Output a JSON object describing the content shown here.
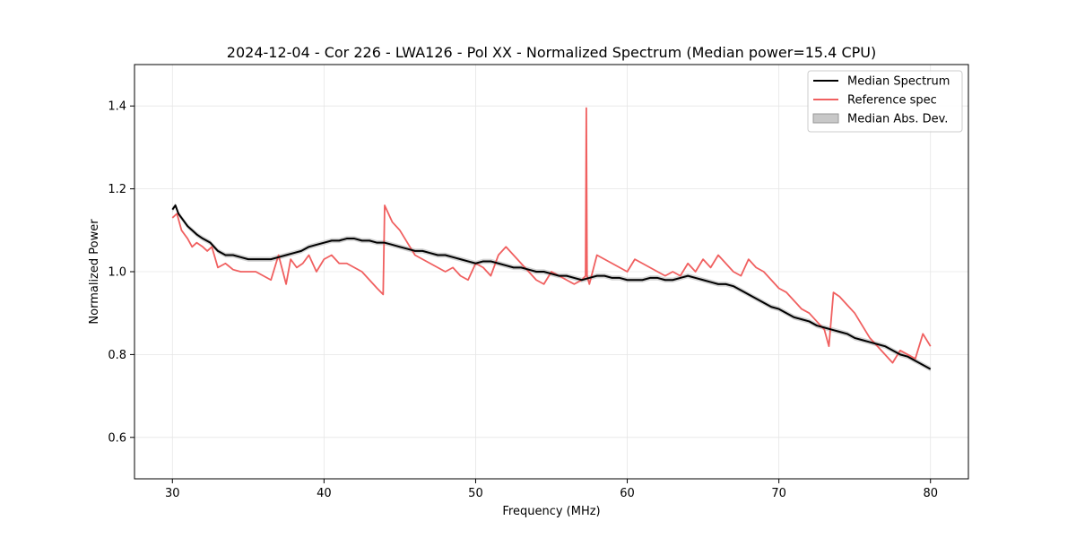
{
  "chart_data": {
    "type": "line",
    "title": "2024-12-04 - Cor 226 - LWA126 - Pol XX - Normalized Spectrum (Median power=15.4 CPU)",
    "xlabel": "Frequency (MHz)",
    "ylabel": "Normalized Power",
    "xlim": [
      27.5,
      82.5
    ],
    "ylim": [
      0.5,
      1.5
    ],
    "xticks": [
      30,
      40,
      50,
      60,
      70,
      80
    ],
    "yticks": [
      0.6,
      0.8,
      1.0,
      1.2,
      1.4
    ],
    "xtick_labels": [
      "30",
      "40",
      "50",
      "60",
      "70",
      "80"
    ],
    "ytick_labels": [
      "0.6",
      "0.8",
      "1.0",
      "1.2",
      "1.4"
    ],
    "grid": true,
    "legend_position": "top-right",
    "legend": [
      "Median Spectrum",
      "Reference spec",
      "Median Abs. Dev."
    ],
    "series": [
      {
        "name": "Median Spectrum",
        "color": "#000000",
        "x": [
          30.0,
          30.2,
          30.4,
          30.6,
          30.8,
          31.0,
          31.3,
          31.6,
          32.0,
          32.5,
          33.0,
          33.5,
          34.0,
          34.5,
          35.0,
          35.5,
          36.0,
          36.5,
          37.0,
          37.5,
          38.0,
          38.5,
          39.0,
          39.5,
          40.0,
          40.5,
          41.0,
          41.5,
          42.0,
          42.5,
          43.0,
          43.5,
          44.0,
          44.5,
          45.0,
          45.5,
          46.0,
          46.5,
          47.0,
          47.5,
          48.0,
          48.5,
          49.0,
          49.5,
          50.0,
          50.5,
          51.0,
          51.5,
          52.0,
          52.5,
          53.0,
          53.5,
          54.0,
          54.5,
          55.0,
          55.5,
          56.0,
          56.5,
          57.0,
          57.5,
          58.0,
          58.5,
          59.0,
          59.5,
          60.0,
          60.5,
          61.0,
          61.5,
          62.0,
          62.5,
          63.0,
          63.5,
          64.0,
          64.5,
          65.0,
          65.5,
          66.0,
          66.5,
          67.0,
          67.5,
          68.0,
          68.5,
          69.0,
          69.5,
          70.0,
          70.5,
          71.0,
          71.5,
          72.0,
          72.5,
          73.0,
          73.5,
          74.0,
          74.5,
          75.0,
          75.5,
          76.0,
          76.5,
          77.0,
          77.5,
          78.0,
          78.5,
          79.0,
          79.5,
          80.0
        ],
        "values": [
          1.15,
          1.16,
          1.14,
          1.13,
          1.12,
          1.11,
          1.1,
          1.09,
          1.08,
          1.07,
          1.05,
          1.04,
          1.04,
          1.035,
          1.03,
          1.03,
          1.03,
          1.03,
          1.035,
          1.04,
          1.045,
          1.05,
          1.06,
          1.065,
          1.07,
          1.075,
          1.075,
          1.08,
          1.08,
          1.075,
          1.075,
          1.07,
          1.07,
          1.065,
          1.06,
          1.055,
          1.05,
          1.05,
          1.045,
          1.04,
          1.04,
          1.035,
          1.03,
          1.025,
          1.02,
          1.025,
          1.025,
          1.02,
          1.015,
          1.01,
          1.01,
          1.005,
          1.0,
          1.0,
          0.995,
          0.99,
          0.99,
          0.985,
          0.98,
          0.985,
          0.99,
          0.99,
          0.985,
          0.985,
          0.98,
          0.98,
          0.98,
          0.985,
          0.985,
          0.98,
          0.98,
          0.985,
          0.99,
          0.985,
          0.98,
          0.975,
          0.97,
          0.97,
          0.965,
          0.955,
          0.945,
          0.935,
          0.925,
          0.915,
          0.91,
          0.9,
          0.89,
          0.885,
          0.88,
          0.87,
          0.865,
          0.86,
          0.855,
          0.85,
          0.84,
          0.835,
          0.83,
          0.825,
          0.82,
          0.81,
          0.8,
          0.795,
          0.785,
          0.775,
          0.765
        ]
      },
      {
        "name": "Reference spec",
        "color": "#f06060",
        "x": [
          30.0,
          30.3,
          30.6,
          31.0,
          31.3,
          31.6,
          32.0,
          32.3,
          32.6,
          33.0,
          33.5,
          34.0,
          34.5,
          35.0,
          35.5,
          36.0,
          36.5,
          37.0,
          37.5,
          37.8,
          38.2,
          38.6,
          39.0,
          39.5,
          40.0,
          40.5,
          41.0,
          41.5,
          42.0,
          42.5,
          43.0,
          43.5,
          43.9,
          44.0,
          44.5,
          45.0,
          45.5,
          46.0,
          46.5,
          47.0,
          47.5,
          48.0,
          48.5,
          49.0,
          49.5,
          50.0,
          50.5,
          51.0,
          51.5,
          52.0,
          52.5,
          53.0,
          53.5,
          54.0,
          54.5,
          55.0,
          55.5,
          56.0,
          56.5,
          57.0,
          57.25,
          57.3,
          57.35,
          57.5,
          58.0,
          58.5,
          59.0,
          59.5,
          60.0,
          60.5,
          61.0,
          61.5,
          62.0,
          62.5,
          63.0,
          63.5,
          64.0,
          64.5,
          65.0,
          65.5,
          66.0,
          66.5,
          67.0,
          67.5,
          68.0,
          68.5,
          69.0,
          69.5,
          70.0,
          70.5,
          71.0,
          71.5,
          72.0,
          72.5,
          73.0,
          73.3,
          73.6,
          74.0,
          74.5,
          75.0,
          75.5,
          76.0,
          76.5,
          77.0,
          77.5,
          78.0,
          78.5,
          79.0,
          79.5,
          80.0
        ],
        "values": [
          1.13,
          1.14,
          1.1,
          1.08,
          1.06,
          1.07,
          1.06,
          1.05,
          1.06,
          1.01,
          1.02,
          1.005,
          1.0,
          1.0,
          1.0,
          0.99,
          0.98,
          1.04,
          0.97,
          1.03,
          1.01,
          1.02,
          1.04,
          1.0,
          1.03,
          1.04,
          1.02,
          1.02,
          1.01,
          1.0,
          0.98,
          0.96,
          0.945,
          1.16,
          1.12,
          1.1,
          1.07,
          1.04,
          1.03,
          1.02,
          1.01,
          1.0,
          1.01,
          0.99,
          0.98,
          1.02,
          1.01,
          0.99,
          1.04,
          1.06,
          1.04,
          1.02,
          1.0,
          0.98,
          0.97,
          1.0,
          0.99,
          0.98,
          0.97,
          0.98,
          0.99,
          1.395,
          0.99,
          0.97,
          1.04,
          1.03,
          1.02,
          1.01,
          1.0,
          1.03,
          1.02,
          1.01,
          1.0,
          0.99,
          1.0,
          0.99,
          1.02,
          1.0,
          1.03,
          1.01,
          1.04,
          1.02,
          1.0,
          0.99,
          1.03,
          1.01,
          1.0,
          0.98,
          0.96,
          0.95,
          0.93,
          0.91,
          0.9,
          0.88,
          0.86,
          0.82,
          0.95,
          0.94,
          0.92,
          0.9,
          0.87,
          0.84,
          0.82,
          0.8,
          0.78,
          0.81,
          0.8,
          0.79,
          0.85,
          0.82
        ]
      }
    ],
    "mad_band": {
      "name": "Median Abs. Dev.",
      "color": "#c8c8c8",
      "half_width": 0.006
    }
  },
  "legend_colors": {
    "median": "#000000",
    "reference": "#f06060",
    "mad": "#c8c8c8"
  }
}
